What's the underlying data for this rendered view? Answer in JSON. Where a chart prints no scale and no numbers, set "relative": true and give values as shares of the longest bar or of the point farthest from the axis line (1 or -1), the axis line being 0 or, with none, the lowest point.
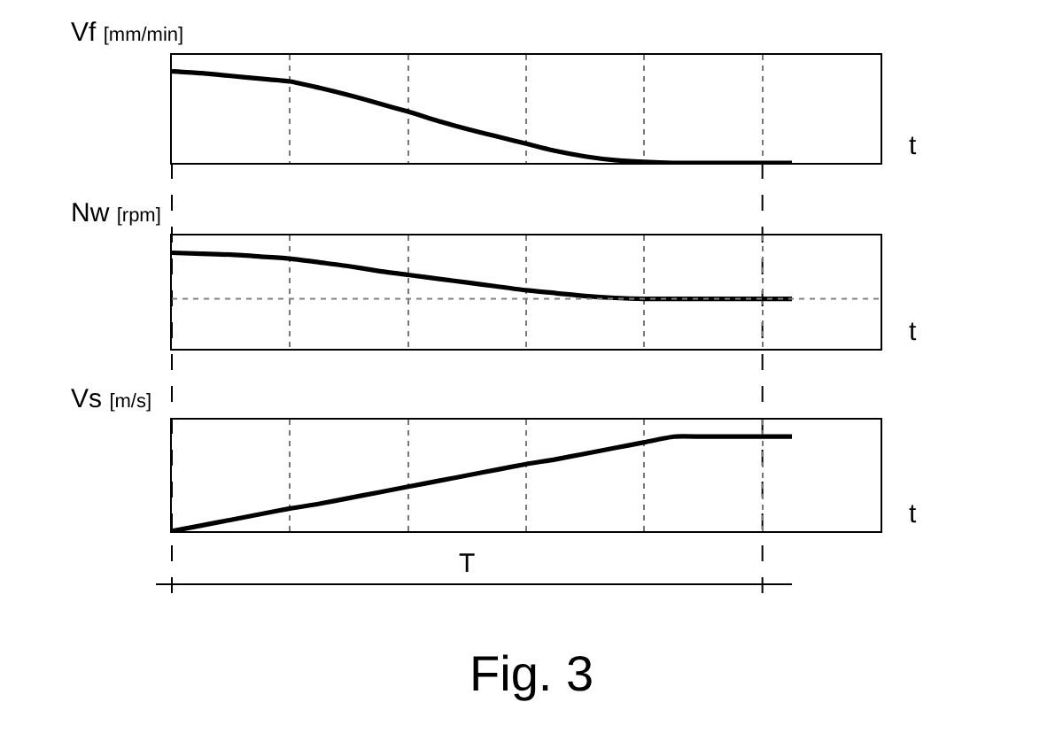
{
  "chart_data": [
    {
      "type": "line",
      "relative": true,
      "ylabel": "Vf [mm/min]",
      "xlabel": "t",
      "grid": "x",
      "line_style": "solid",
      "marker": "none",
      "categories": [
        null,
        null,
        null,
        null,
        null,
        null,
        null,
        null,
        null,
        null,
        null,
        null,
        null,
        null,
        null,
        null,
        null,
        null,
        null,
        null,
        null,
        null,
        null,
        null,
        null
      ],
      "series": [
        {
          "color": "#000000",
          "values": [
            1.0,
            0.98,
            0.95,
            0.92,
            0.89,
            0.82,
            0.74,
            0.65,
            0.56,
            0.46,
            0.37,
            0.29,
            0.21,
            0.13,
            0.07,
            0.03,
            0.01,
            0,
            0,
            0,
            0,
            0,
            null,
            null,
            null
          ]
        }
      ]
    },
    {
      "type": "line",
      "relative": true,
      "ylabel": "Nw [rpm]",
      "xlabel": "t",
      "grid": "x",
      "line_style": "solid",
      "marker": "none",
      "categories": [
        null,
        null,
        null,
        null,
        null,
        null,
        null,
        null,
        null,
        null,
        null,
        null,
        null,
        null,
        null,
        null,
        null,
        null,
        null,
        null,
        null,
        null,
        null,
        null,
        null
      ],
      "series": [
        {
          "color": "#000000",
          "values": [
            1.0,
            0.99,
            0.98,
            0.96,
            0.94,
            0.9,
            0.86,
            0.81,
            0.77,
            0.73,
            0.69,
            0.65,
            0.61,
            0.58,
            0.55,
            0.53,
            0.52,
            0.52,
            0.52,
            0.52,
            0.52,
            0.52,
            null,
            null,
            null
          ]
        }
      ],
      "ref_lines": [
        {
          "axis": "y",
          "value": 0.52,
          "color": "#808080",
          "line_style": "dotted"
        }
      ]
    },
    {
      "type": "line",
      "relative": true,
      "ylabel": "Vs [m/s]",
      "xlabel": "t",
      "grid": "x",
      "line_style": "solid",
      "marker": "none",
      "categories": [
        null,
        null,
        null,
        null,
        null,
        null,
        null,
        null,
        null,
        null,
        null,
        null,
        null,
        null,
        null,
        null,
        null,
        null,
        null,
        null,
        null,
        null,
        null,
        null,
        null
      ],
      "series": [
        {
          "color": "#000000",
          "values": [
            0,
            0.06,
            0.12,
            0.18,
            0.24,
            0.29,
            0.35,
            0.41,
            0.47,
            0.53,
            0.59,
            0.65,
            0.71,
            0.76,
            0.82,
            0.88,
            0.94,
            1,
            1,
            1,
            1,
            1,
            null,
            null,
            null
          ]
        }
      ],
      "annotations": [
        "T",
        "Fig. 3"
      ]
    }
  ]
}
